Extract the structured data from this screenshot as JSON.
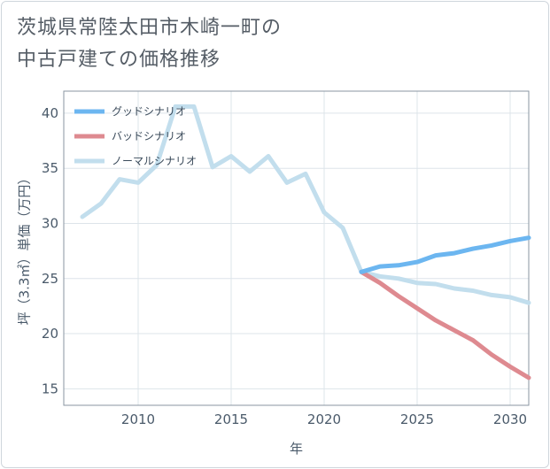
{
  "title_line1": "茨城県常陸太田市木崎一町の",
  "title_line2": "中古戸建ての価格推移",
  "chart_data": {
    "type": "line",
    "xlabel": "年",
    "ylabel": "坪（3.3㎡）単価（万円）",
    "xlim": [
      2006,
      2031
    ],
    "ylim": [
      13.5,
      42
    ],
    "xticks": [
      2010,
      2015,
      2020,
      2025,
      2030
    ],
    "yticks": [
      15,
      20,
      25,
      30,
      35,
      40
    ],
    "grid": true,
    "legend_position": "top-left",
    "series": [
      {
        "name": "グッドシナリオ",
        "color": "#6cb6f0",
        "x": [
          2022,
          2023,
          2024,
          2025,
          2026,
          2027,
          2028,
          2029,
          2030,
          2031
        ],
        "y": [
          25.6,
          26.1,
          26.2,
          26.5,
          27.1,
          27.3,
          27.7,
          28.0,
          28.4,
          28.7
        ]
      },
      {
        "name": "バッドシナリオ",
        "color": "#de8a90",
        "x": [
          2022,
          2023,
          2024,
          2025,
          2026,
          2027,
          2028,
          2029,
          2030,
          2031
        ],
        "y": [
          25.6,
          24.6,
          23.4,
          22.3,
          21.2,
          20.3,
          19.4,
          18.1,
          17.0,
          16.0
        ]
      },
      {
        "name": "ノーマルシナリオ",
        "color": "#c2deed",
        "x": [
          2007,
          2008,
          2009,
          2010,
          2011,
          2012,
          2013,
          2014,
          2015,
          2016,
          2017,
          2018,
          2019,
          2020,
          2021,
          2022,
          2023,
          2024,
          2025,
          2026,
          2027,
          2028,
          2029,
          2030,
          2031
        ],
        "y": [
          30.6,
          31.8,
          34.0,
          33.7,
          35.3,
          40.6,
          40.6,
          35.1,
          36.1,
          34.7,
          36.1,
          33.7,
          34.5,
          31.0,
          29.6,
          25.6,
          25.2,
          25.0,
          24.6,
          24.5,
          24.1,
          23.9,
          23.5,
          23.3,
          22.8
        ]
      }
    ]
  }
}
